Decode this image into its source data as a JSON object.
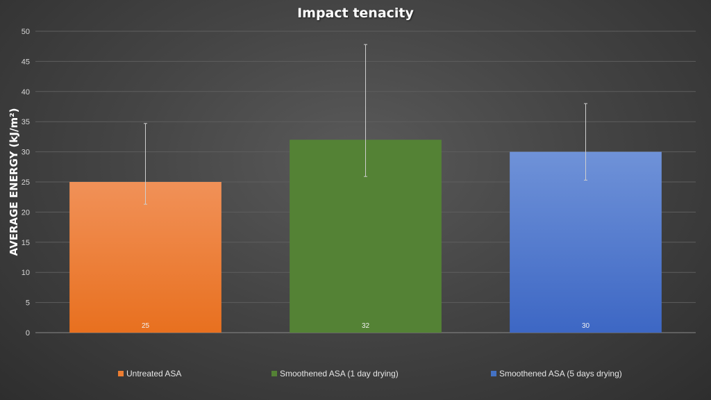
{
  "chart_data": {
    "type": "bar",
    "title": "Impact tenacity",
    "ylabel": "AVERAGE ENERGY (kJ/m²)",
    "xlabel": "",
    "categories": [
      "Untreated ASA",
      "Smoothened ASA (1 day drying)",
      "Smoothened ASA (5 days drying)"
    ],
    "values": [
      25,
      32,
      30
    ],
    "data_labels": [
      "25",
      "32",
      "30"
    ],
    "error_bars": [
      {
        "low": 21.3,
        "high": 34.7
      },
      {
        "low": 25.9,
        "high": 47.8
      },
      {
        "low": 25.3,
        "high": 38.0
      }
    ],
    "colors": [
      {
        "top": "#f19158",
        "bottom": "#e8701f"
      },
      {
        "top": "#548235",
        "bottom": "#548235"
      },
      {
        "top": "#6f92d8",
        "bottom": "#3d67c4"
      }
    ],
    "ylim": [
      0,
      50
    ],
    "yticks": [
      0,
      5,
      10,
      15,
      20,
      25,
      30,
      35,
      40,
      45,
      50
    ],
    "grid": true,
    "legend_position": "bottom"
  }
}
